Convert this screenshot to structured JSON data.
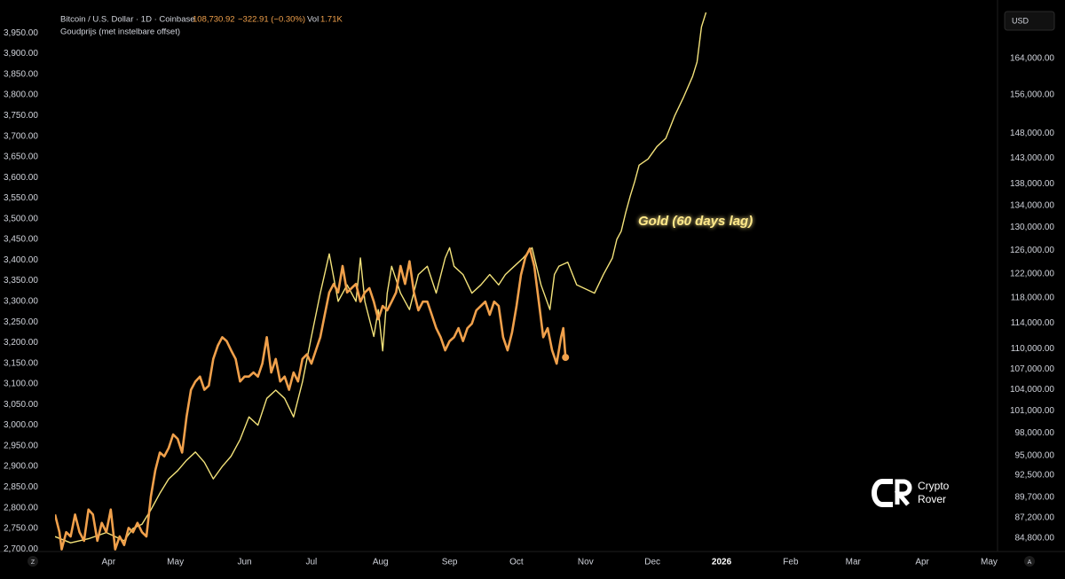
{
  "chart_data": {
    "type": "line",
    "header": {
      "last_price": "108,730.92",
      "change": "−322.91 (−0.30%)",
      "volume_label": "Vol",
      "volume": "1.71K"
    },
    "annotation": "Gold (60 days lag)",
    "currency_button": "USD",
    "left_button": "Z",
    "right_button": "A",
    "logo": {
      "line1": "Crypto",
      "line2": "Rover"
    },
    "grid": false,
    "y2log": true,
    "xlim": [
      -24,
      398
    ],
    "xticks": [
      {
        "value": 0,
        "label": "Apr"
      },
      {
        "value": 30,
        "label": "May"
      },
      {
        "value": 61,
        "label": "Jun"
      },
      {
        "value": 91,
        "label": "Jul"
      },
      {
        "value": 122,
        "label": "Aug"
      },
      {
        "value": 153,
        "label": "Sep"
      },
      {
        "value": 183,
        "label": "Oct"
      },
      {
        "value": 214,
        "label": "Nov"
      },
      {
        "value": 244,
        "label": "Dec"
      },
      {
        "value": 275,
        "label": "2026"
      },
      {
        "value": 306,
        "label": "Feb"
      },
      {
        "value": 334,
        "label": "Mar"
      },
      {
        "value": 365,
        "label": "Apr"
      },
      {
        "value": 395,
        "label": "May"
      }
    ],
    "ylim": [
      2694,
      4000
    ],
    "yticks": [
      {
        "value": 2700,
        "label": "2,700.00"
      },
      {
        "value": 2750,
        "label": "2,750.00"
      },
      {
        "value": 2800,
        "label": "2,800.00"
      },
      {
        "value": 2850,
        "label": "2,850.00"
      },
      {
        "value": 2900,
        "label": "2,900.00"
      },
      {
        "value": 2950,
        "label": "2,950.00"
      },
      {
        "value": 3000,
        "label": "3,000.00"
      },
      {
        "value": 3050,
        "label": "3,050.00"
      },
      {
        "value": 3100,
        "label": "3,100.00"
      },
      {
        "value": 3150,
        "label": "3,150.00"
      },
      {
        "value": 3200,
        "label": "3,200.00"
      },
      {
        "value": 3250,
        "label": "3,250.00"
      },
      {
        "value": 3300,
        "label": "3,300.00"
      },
      {
        "value": 3350,
        "label": "3,350.00"
      },
      {
        "value": 3400,
        "label": "3,400.00"
      },
      {
        "value": 3450,
        "label": "3,450.00"
      },
      {
        "value": 3500,
        "label": "3,500.00"
      },
      {
        "value": 3550,
        "label": "3,550.00"
      },
      {
        "value": 3600,
        "label": "3,600.00"
      },
      {
        "value": 3650,
        "label": "3,650.00"
      },
      {
        "value": 3700,
        "label": "3,700.00"
      },
      {
        "value": 3750,
        "label": "3,750.00"
      },
      {
        "value": 3800,
        "label": "3,800.00"
      },
      {
        "value": 3850,
        "label": "3,850.00"
      },
      {
        "value": 3900,
        "label": "3,900.00"
      },
      {
        "value": 3950,
        "label": "3,950.00"
      }
    ],
    "y2lim": [
      83260,
      174740
    ],
    "y2ticks": [
      {
        "value": 84800,
        "label": "84,800.00"
      },
      {
        "value": 87200,
        "label": "87,200.00"
      },
      {
        "value": 89700,
        "label": "89,700.00"
      },
      {
        "value": 92500,
        "label": "92,500.00"
      },
      {
        "value": 95000,
        "label": "95,000.00"
      },
      {
        "value": 98000,
        "label": "98,000.00"
      },
      {
        "value": 101000,
        "label": "101,000.00"
      },
      {
        "value": 104000,
        "label": "104,000.00"
      },
      {
        "value": 107000,
        "label": "107,000.00"
      },
      {
        "value": 110000,
        "label": "110,000.00"
      },
      {
        "value": 114000,
        "label": "114,000.00"
      },
      {
        "value": 118000,
        "label": "118,000.00"
      },
      {
        "value": 122000,
        "label": "122,000.00"
      },
      {
        "value": 126000,
        "label": "126,000.00"
      },
      {
        "value": 130000,
        "label": "130,000.00"
      },
      {
        "value": 134000,
        "label": "134,000.00"
      },
      {
        "value": 138000,
        "label": "138,000.00"
      },
      {
        "value": 143000,
        "label": "143,000.00"
      },
      {
        "value": 148000,
        "label": "148,000.00"
      },
      {
        "value": 156000,
        "label": "156,000.00"
      },
      {
        "value": 164000,
        "label": "164,000.00"
      }
    ],
    "series": [
      {
        "name": "Bitcoin / U.S. Dollar · 1D · Coinbase",
        "color": "#f0a04b",
        "axis": "y2",
        "x": [
          -24,
          -22,
          -21,
          -19,
          -17,
          -15,
          -13,
          -11,
          -9,
          -7,
          -5,
          -3,
          -1,
          1,
          3,
          5,
          7,
          9,
          11,
          13,
          15,
          17,
          19,
          21,
          23,
          25,
          27,
          29,
          31,
          33,
          35,
          37,
          39,
          41,
          43,
          45,
          47,
          49,
          51,
          53,
          55,
          57,
          59,
          61,
          63,
          65,
          67,
          69,
          71,
          73,
          75,
          77,
          79,
          81,
          83,
          85,
          87,
          89,
          91,
          93,
          95,
          97,
          99,
          101,
          103,
          105,
          107,
          109,
          111,
          113,
          115,
          117,
          119,
          121,
          123,
          125,
          127,
          129,
          131,
          133,
          135,
          137,
          139,
          141,
          143,
          145,
          147,
          149,
          151,
          153,
          155,
          157,
          159,
          161,
          163,
          165,
          167,
          169,
          171,
          173,
          175,
          177,
          179,
          181,
          183,
          185,
          187,
          189,
          191,
          193,
          195,
          197,
          199,
          201,
          203,
          204,
          205
        ],
        "values": [
          87600,
          85500,
          83500,
          85500,
          85000,
          87600,
          85500,
          84500,
          88200,
          87600,
          84500,
          86600,
          85500,
          88200,
          83500,
          85000,
          84000,
          86000,
          85500,
          86600,
          85500,
          85000,
          89800,
          93100,
          95400,
          94900,
          96000,
          97800,
          97200,
          95400,
          100200,
          104000,
          105200,
          105900,
          104000,
          104600,
          108500,
          110500,
          111800,
          111200,
          109800,
          108500,
          105200,
          105900,
          105900,
          106500,
          105900,
          107800,
          111800,
          106500,
          108500,
          105200,
          105900,
          104000,
          106500,
          105200,
          108500,
          109200,
          107800,
          109800,
          111800,
          115300,
          118900,
          120300,
          118900,
          123300,
          118900,
          119600,
          120300,
          117400,
          118900,
          119600,
          117400,
          114600,
          116700,
          116000,
          117400,
          118900,
          123300,
          120300,
          124100,
          118900,
          116000,
          117400,
          117400,
          115300,
          113200,
          111800,
          109800,
          111200,
          111800,
          113200,
          111200,
          113200,
          113900,
          116000,
          116700,
          117400,
          115300,
          117400,
          116700,
          111800,
          109800,
          112500,
          116700,
          121800,
          124800,
          126300,
          123300,
          117400,
          111800,
          113200,
          109800,
          107800,
          111800,
          113200,
          108731
        ]
      },
      {
        "name": "Goudprijs (met instelbare offset)",
        "color": "#f3e27a",
        "axis": "y",
        "x": [
          -24,
          -17,
          -9,
          -1,
          7,
          11,
          15,
          19,
          23,
          27,
          31,
          35,
          39,
          43,
          47,
          51,
          55,
          59,
          63,
          67,
          71,
          75,
          79,
          83,
          87,
          91,
          95,
          99,
          103,
          107,
          111,
          113,
          115,
          119,
          121,
          123,
          125,
          127,
          131,
          135,
          139,
          143,
          147,
          151,
          153,
          155,
          159,
          163,
          167,
          171,
          175,
          178,
          182,
          186,
          190,
          194,
          198,
          200,
          202,
          206,
          210,
          214,
          218,
          222,
          226,
          228,
          230,
          232,
          234,
          236,
          238,
          242,
          246,
          250,
          254,
          258,
          262,
          264,
          266,
          268
        ],
        "values": [
          2730,
          2715,
          2725,
          2740,
          2720,
          2750,
          2760,
          2795,
          2835,
          2870,
          2890,
          2915,
          2935,
          2910,
          2870,
          2900,
          2925,
          2965,
          3020,
          3000,
          3065,
          3085,
          3065,
          3020,
          3105,
          3215,
          3320,
          3415,
          3300,
          3340,
          3300,
          3405,
          3300,
          3215,
          3280,
          3180,
          3320,
          3385,
          3320,
          3280,
          3365,
          3385,
          3320,
          3405,
          3430,
          3385,
          3365,
          3320,
          3340,
          3365,
          3340,
          3365,
          3385,
          3405,
          3430,
          3340,
          3280,
          3365,
          3385,
          3395,
          3340,
          3330,
          3320,
          3365,
          3405,
          3450,
          3470,
          3515,
          3555,
          3590,
          3630,
          3645,
          3675,
          3695,
          3750,
          3795,
          3845,
          3880,
          3965,
          4000
        ]
      }
    ]
  }
}
